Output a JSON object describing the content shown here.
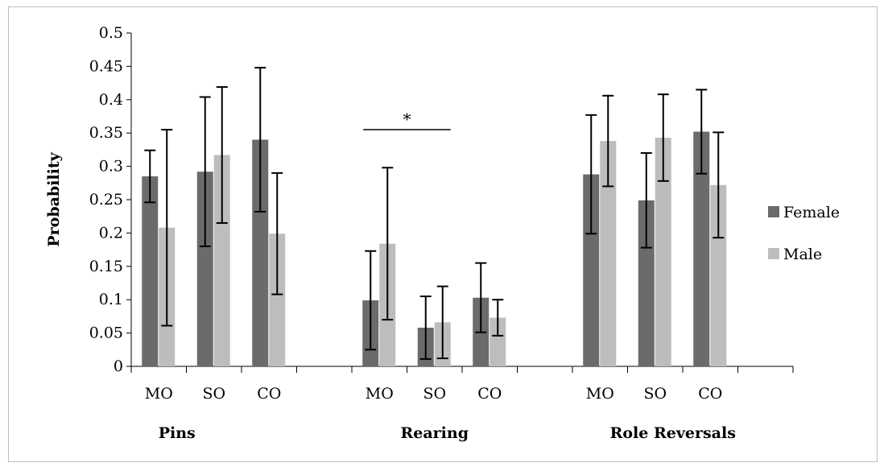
{
  "chart_data": {
    "type": "bar",
    "ylabel": "Probability",
    "ylim": [
      0,
      0.5
    ],
    "yticks": [
      "0",
      "0.05",
      "0.1",
      "0.15",
      "0.2",
      "0.25",
      "0.3",
      "0.35",
      "0.4",
      "0.45",
      "0.5"
    ],
    "categories": [
      "MO",
      "SO",
      "CO",
      "MO",
      "SO",
      "CO",
      "MO",
      "SO",
      "CO"
    ],
    "groups": [
      {
        "label": "Pins",
        "categories": [
          "MO",
          "SO",
          "CO"
        ]
      },
      {
        "label": "Rearing",
        "categories": [
          "MO",
          "SO",
          "CO"
        ]
      },
      {
        "label": "Role Reversals",
        "categories": [
          "MO",
          "SO",
          "CO"
        ]
      }
    ],
    "series": [
      {
        "name": "Female",
        "color": "#6b6b6b",
        "values": [
          0.285,
          0.292,
          0.34,
          0.099,
          0.058,
          0.103,
          0.288,
          0.249,
          0.352
        ],
        "error": [
          0.039,
          0.112,
          0.108,
          0.074,
          0.047,
          0.052,
          0.089,
          0.071,
          0.063
        ]
      },
      {
        "name": "Male",
        "color": "#bdbdbd",
        "values": [
          0.208,
          0.317,
          0.199,
          0.184,
          0.066,
          0.073,
          0.338,
          0.343,
          0.272
        ],
        "error": [
          0.147,
          0.102,
          0.091,
          0.114,
          0.054,
          0.027,
          0.068,
          0.065,
          0.079
        ]
      }
    ],
    "annotations": [
      {
        "text": "*",
        "group": "Rearing",
        "from": "MO",
        "to": "SO"
      }
    ],
    "legend": "right",
    "grid": false
  }
}
